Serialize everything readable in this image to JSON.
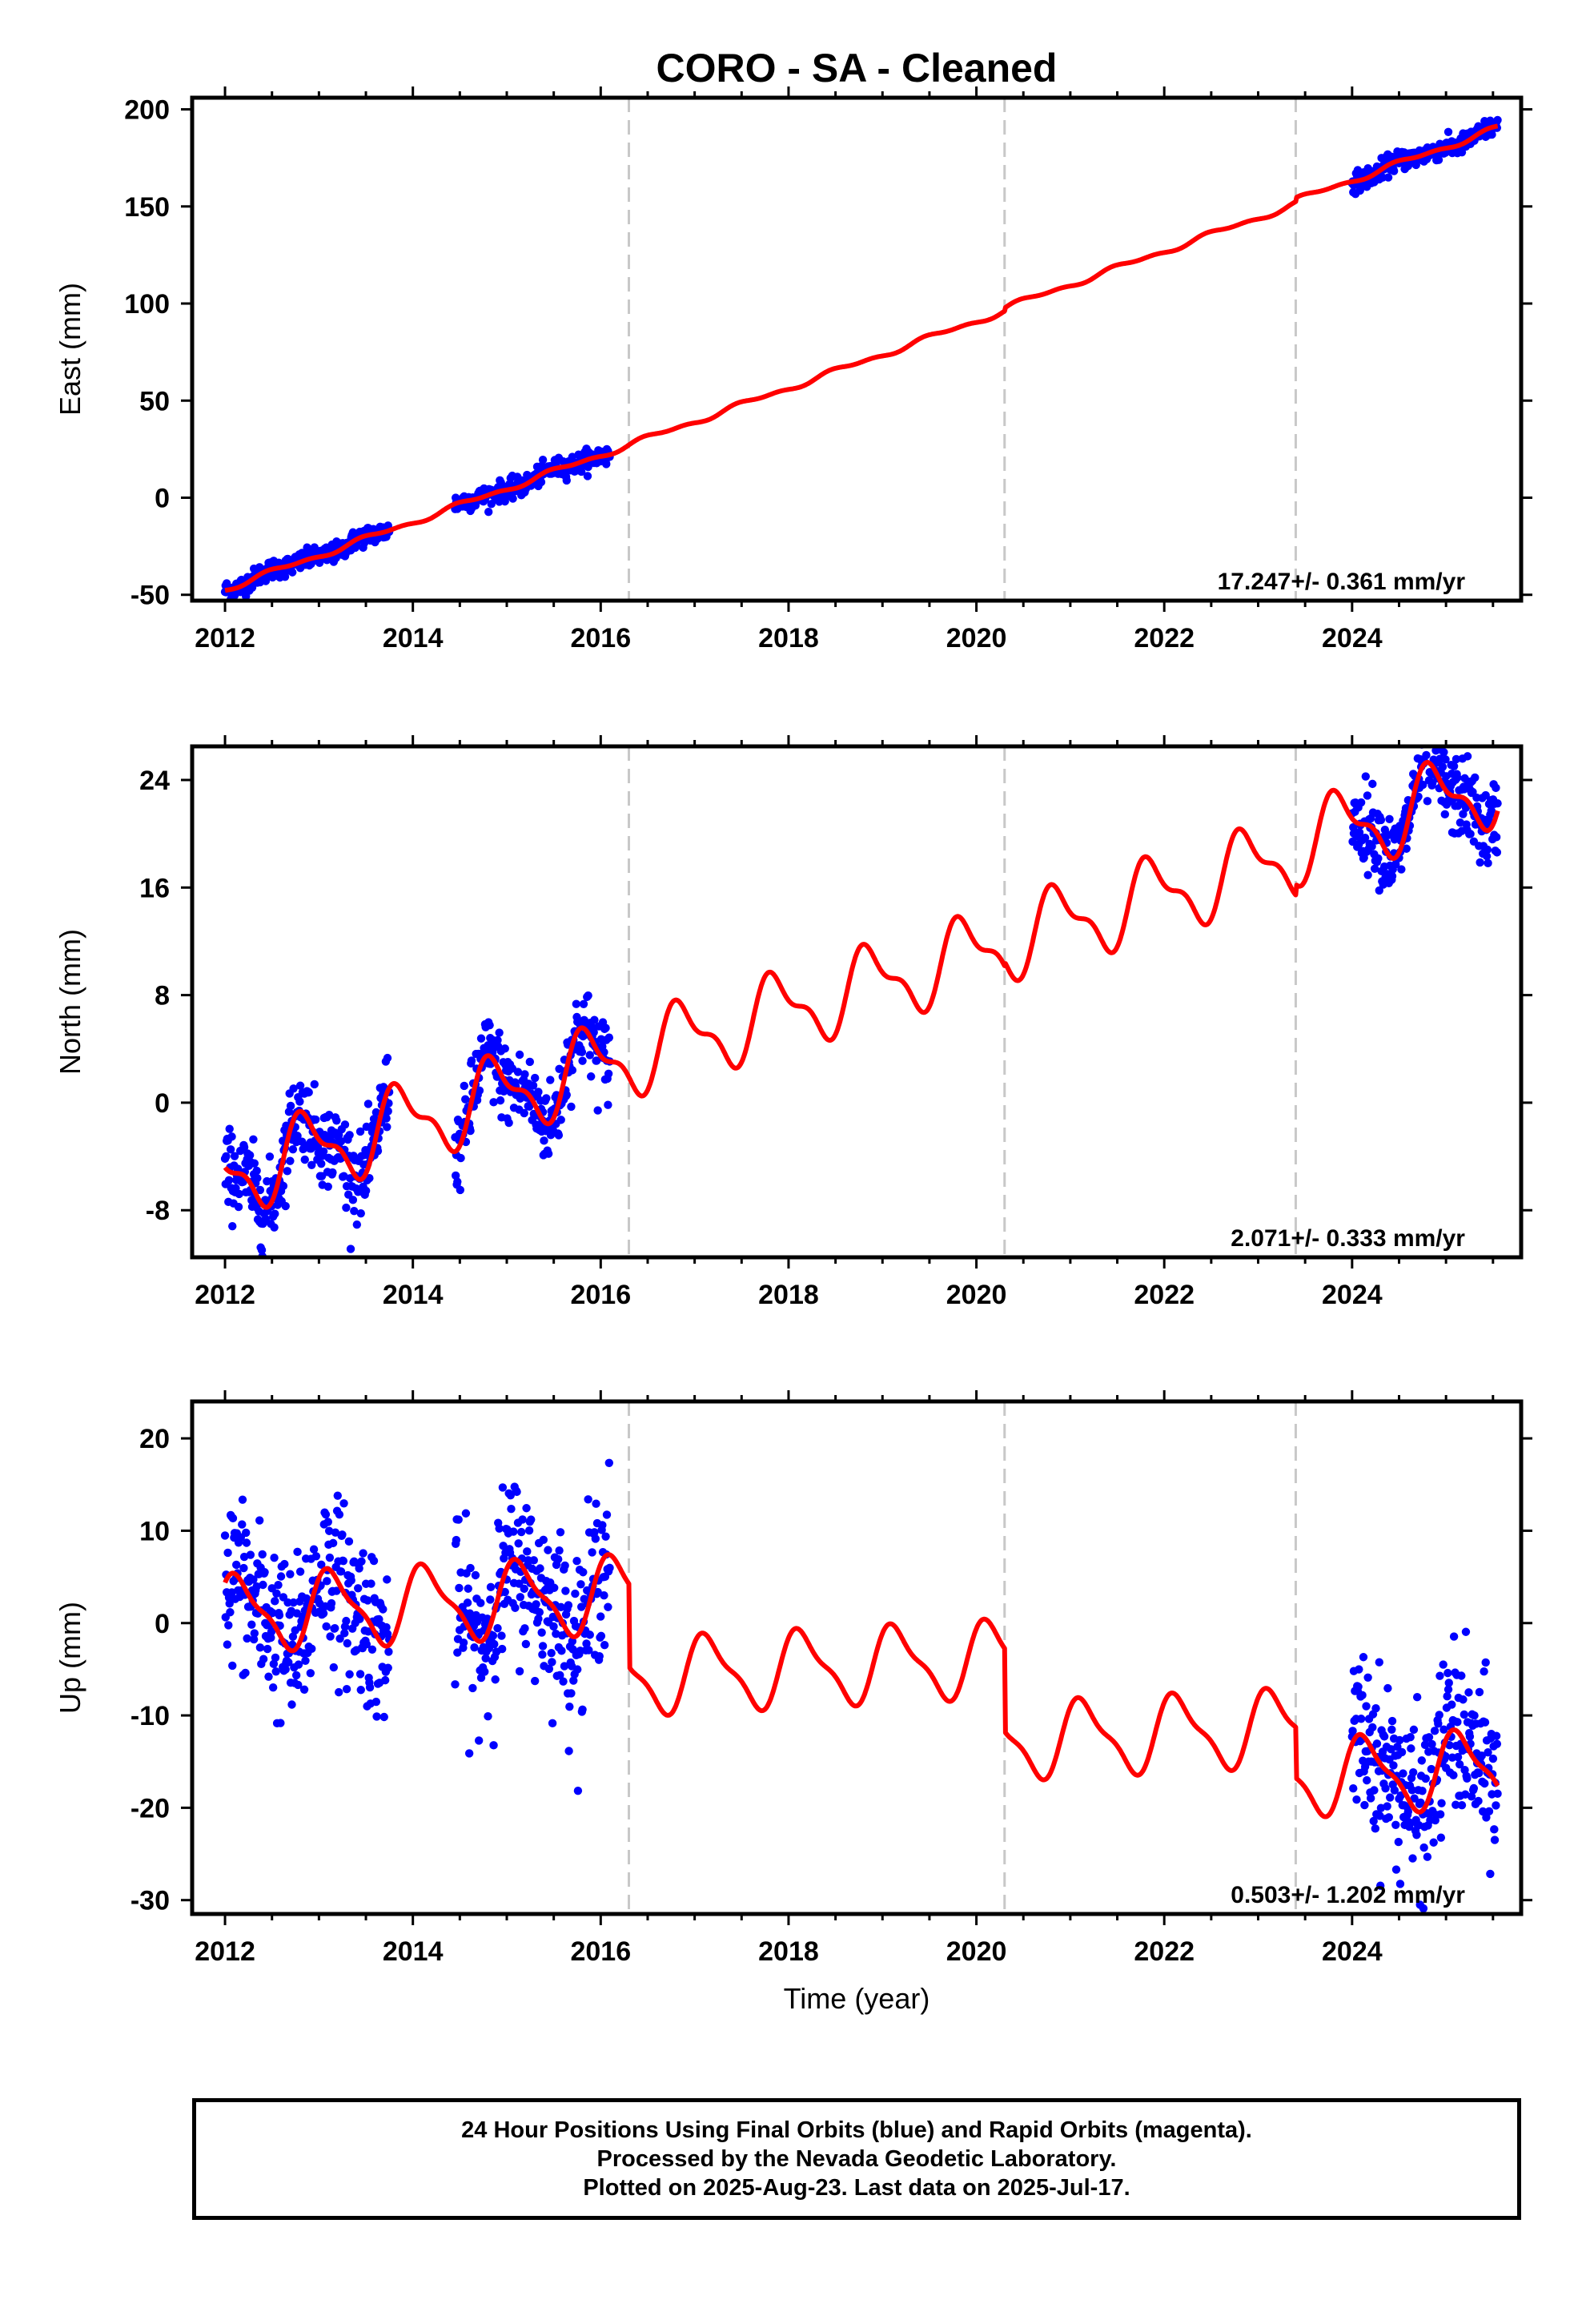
{
  "chart_data": [
    {
      "type": "scatter",
      "title": "CORO  - SA - Cleaned",
      "ylabel": "East (mm)",
      "xlabel": "",
      "xlim": [
        2011.65,
        2025.8
      ],
      "ylim": [
        -53,
        206
      ],
      "xticks": [
        2012,
        2014,
        2016,
        2018,
        2020,
        2022,
        2024
      ],
      "xticklabels": [
        "2012",
        "2014",
        "2016",
        "2018",
        "2020",
        "2022",
        "2024"
      ],
      "yticks": [
        -50,
        0,
        50,
        100,
        150,
        200
      ],
      "yticklabels": [
        "-50",
        "0",
        "50",
        "100",
        "150",
        "200"
      ],
      "breaks": [
        2016.3,
        2020.3,
        2023.4
      ],
      "rate_text": "17.247+/- 0.361 mm/yr",
      "series": [
        {
          "kind": "points",
          "color": "#0000ff",
          "segments": [
            [
              2012.0,
              2013.75
            ],
            [
              2014.45,
              2016.1
            ],
            [
              2024.0,
              2025.55
            ]
          ],
          "noise": 2.5
        },
        {
          "kind": "fit",
          "color": "#ff0000",
          "model": {
            "t0": 2012.0,
            "base": -47,
            "rate": 17.247,
            "annual_amp": 1.2,
            "semi_amp": 0.7,
            "phase": 0.3,
            "offsets": [
              {
                "at": 2020.3,
                "jump": 1.5
              },
              {
                "at": 2023.4,
                "jump": 2.0
              }
            ]
          }
        }
      ]
    },
    {
      "type": "scatter",
      "ylabel": "North (mm)",
      "xlabel": "",
      "xlim": [
        2011.65,
        2025.8
      ],
      "ylim": [
        -11.5,
        26.5
      ],
      "xticks": [
        2012,
        2014,
        2016,
        2018,
        2020,
        2022,
        2024
      ],
      "xticklabels": [
        "2012",
        "2014",
        "2016",
        "2018",
        "2020",
        "2022",
        "2024"
      ],
      "yticks": [
        -8,
        0,
        8,
        16,
        24
      ],
      "yticklabels": [
        "-8",
        "0",
        "8",
        "16",
        "24"
      ],
      "breaks": [
        2016.3,
        2020.3,
        2023.4
      ],
      "rate_text": "2.071+/- 0.333 mm/yr",
      "series": [
        {
          "kind": "points",
          "color": "#0000ff",
          "segments": [
            [
              2012.0,
              2013.75
            ],
            [
              2014.45,
              2016.1
            ],
            [
              2024.0,
              2025.55
            ]
          ],
          "noise": 1.5
        },
        {
          "kind": "fit",
          "color": "#ff0000",
          "model": {
            "t0": 2012.0,
            "base": -5.5,
            "rate": 2.071,
            "annual_amp": 2.6,
            "semi_amp": 1.1,
            "phase": 0.62,
            "offsets": [
              {
                "at": 2020.3,
                "jump": 0.3
              },
              {
                "at": 2023.4,
                "jump": 0.8
              }
            ]
          }
        }
      ]
    },
    {
      "type": "scatter",
      "ylabel": "Up (mm)",
      "xlabel": "Time (year)",
      "xlim": [
        2011.65,
        2025.8
      ],
      "ylim": [
        -31.5,
        24
      ],
      "xticks": [
        2012,
        2014,
        2016,
        2018,
        2020,
        2022,
        2024
      ],
      "xticklabels": [
        "2012",
        "2014",
        "2016",
        "2018",
        "2020",
        "2022",
        "2024"
      ],
      "yticks": [
        -30,
        -20,
        -10,
        0,
        10,
        20
      ],
      "yticklabels": [
        "-30",
        "-20",
        "-10",
        "0",
        "10",
        "20"
      ],
      "breaks": [
        2016.3,
        2020.3,
        2023.4
      ],
      "rate_text": "0.503+/- 1.202 mm/yr",
      "series": [
        {
          "kind": "points",
          "color": "#0000ff",
          "segments": [
            [
              2012.0,
              2013.75
            ],
            [
              2014.45,
              2016.1
            ],
            [
              2024.0,
              2025.55
            ]
          ],
          "noise": 4.5
        },
        {
          "kind": "fit",
          "color": "#ff0000",
          "model": {
            "t0": 2012.0,
            "base": 1.0,
            "rate": 0.503,
            "annual_amp": 3.8,
            "semi_amp": 1.2,
            "phase": 0.9,
            "offsets": [
              {
                "at": 2016.3,
                "jump": -9.0
              },
              {
                "at": 2020.3,
                "jump": -9.0
              },
              {
                "at": 2023.4,
                "jump": -5.5
              }
            ]
          }
        }
      ]
    }
  ],
  "footer": {
    "line1": "24 Hour Positions Using Final Orbits (blue) and Rapid Orbits (magenta).",
    "line2": "Processed by the Nevada Geodetic Laboratory.",
    "line3": "Plotted on 2025-Aug-23. Last data on 2025-Jul-17."
  }
}
